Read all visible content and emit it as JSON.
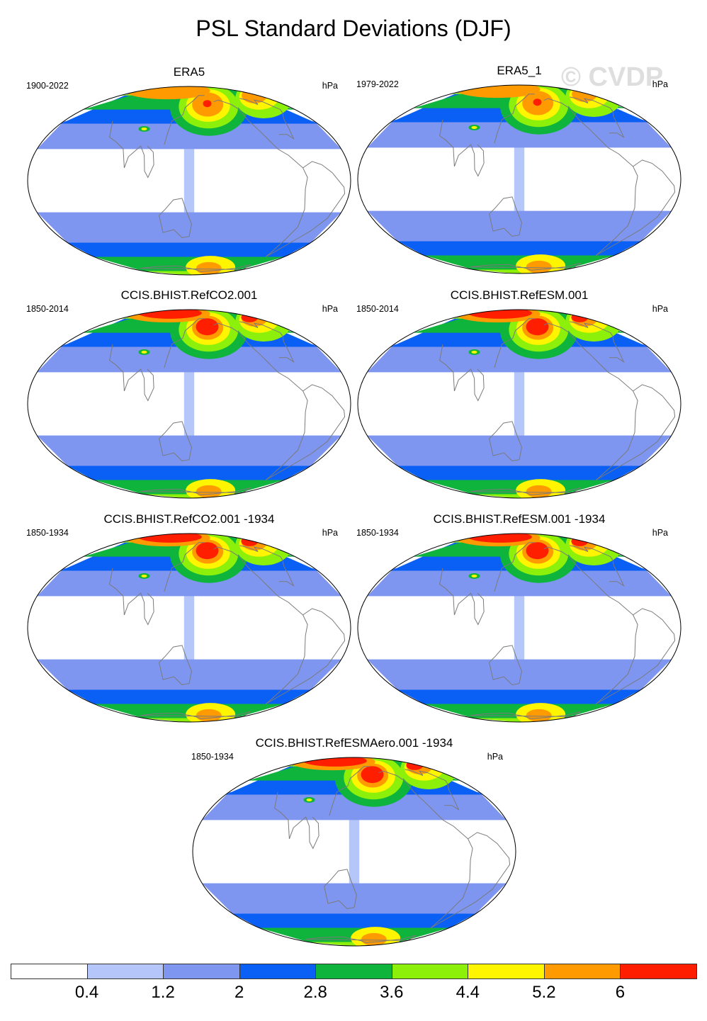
{
  "title": "PSL Standard Deviations (DJF)",
  "units": "hPa",
  "watermark": "© CVDP",
  "panels": [
    {
      "name": "ERA5",
      "period": "1900-2022"
    },
    {
      "name": "ERA5_1",
      "period": "1979-2022"
    },
    {
      "name": "CCIS.BHIST.RefCO2.001",
      "period": "1850-2014"
    },
    {
      "name": "CCIS.BHIST.RefESM.001",
      "period": "1850-2014"
    },
    {
      "name": "CCIS.BHIST.RefCO2.001 -1934",
      "period": "1850-1934"
    },
    {
      "name": "CCIS.BHIST.RefESM.001 -1934",
      "period": "1850-1934"
    },
    {
      "name": "CCIS.BHIST.RefESMAero.001 -1934",
      "period": "1850-1934"
    }
  ],
  "colorbar": {
    "colors": [
      "#ffffff",
      "#b4c6fa",
      "#7f96f0",
      "#0a5ff5",
      "#0fb43c",
      "#8cf00a",
      "#fff500",
      "#ff9b00",
      "#ff1e00"
    ],
    "labels": [
      "0.4",
      "1.2",
      "2",
      "2.8",
      "3.6",
      "4.4",
      "5.2",
      "6"
    ]
  }
}
